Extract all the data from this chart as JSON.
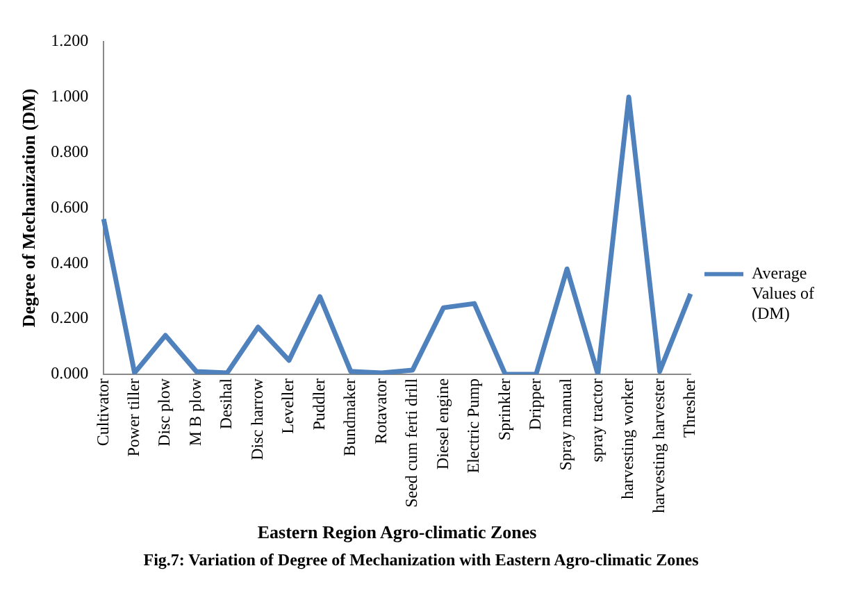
{
  "chart_data": {
    "type": "line",
    "xlabel": "Eastern Region Agro-climatic Zones",
    "ylabel": "Degree of Mechanization (DM)",
    "categories": [
      "Cultivator",
      "Power tiller",
      "Disc plow",
      "M B plow",
      "Desihal",
      "Disc harrow",
      "Leveller",
      "Puddler",
      "Bundmaker",
      "Rotavator",
      "Seed cum ferti drill",
      "Diesel engine",
      "Electric Pump",
      "Sprinkler",
      "Dripper",
      "Spray manual",
      "spray tractor",
      "harvesting worker",
      "harvesting harvester",
      "Thresher"
    ],
    "series": [
      {
        "name": "Average Values of (DM)",
        "color": "#4f81bd",
        "values": [
          0.56,
          0.005,
          0.14,
          0.01,
          0.005,
          0.17,
          0.05,
          0.28,
          0.01,
          0.005,
          0.015,
          0.24,
          0.255,
          0,
          0,
          0.38,
          0,
          1.0,
          0.01,
          0.29
        ]
      }
    ],
    "ylim": [
      0,
      1.2
    ],
    "yticks": [
      {
        "value": 0,
        "label": "0.000"
      },
      {
        "value": 0.2,
        "label": "0.200"
      },
      {
        "value": 0.4,
        "label": "0.400"
      },
      {
        "value": 0.6,
        "label": "0.600"
      },
      {
        "value": 0.8,
        "label": "0.800"
      },
      {
        "value": 1,
        "label": "1.000"
      },
      {
        "value": 1.2,
        "label": "1.200"
      }
    ],
    "grid": false,
    "legend": "right",
    "marker": "none",
    "line_style": "solid",
    "annotations": [
      "Fig.7: Variation of Degree of Mechanization with Eastern Agro-climatic Zones"
    ]
  }
}
